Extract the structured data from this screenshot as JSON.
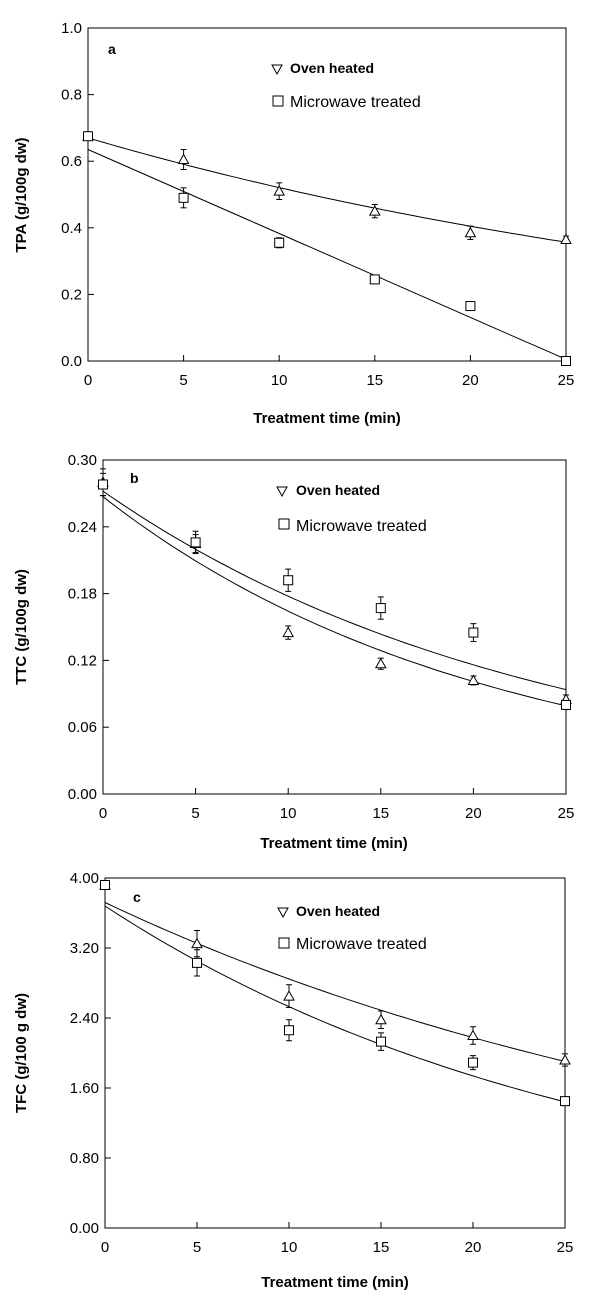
{
  "chart_data": [
    {
      "type": "scatter",
      "panel": "a",
      "xlabel": "Treatment time (min)",
      "ylabel": "TPA (g/100g dw)",
      "xlim": [
        0,
        25
      ],
      "ylim": [
        0,
        1.0
      ],
      "xticks": [
        "0",
        "5",
        "10",
        "15",
        "20",
        "25"
      ],
      "yticks": [
        "0.0",
        "0.2",
        "0.4",
        "0.6",
        "0.8",
        "1.0"
      ],
      "legend_position": "top-right",
      "series": [
        {
          "name": "Oven heated",
          "marker": "triangle",
          "x": [
            0,
            5,
            10,
            15,
            20,
            25
          ],
          "y": [
            0.675,
            0.605,
            0.51,
            0.45,
            0.385,
            0.365
          ],
          "yerr": [
            0.01,
            0.03,
            0.025,
            0.02,
            0.02,
            0.01
          ],
          "fit": {
            "kind": "exponential",
            "y0": 0.67,
            "k": 0.0252
          }
        },
        {
          "name": "Microwave treated",
          "marker": "square",
          "x": [
            0,
            5,
            10,
            15,
            20,
            25
          ],
          "y": [
            0.675,
            0.49,
            0.355,
            0.245,
            0.165,
            0.0
          ],
          "yerr": [
            0.01,
            0.03,
            0.015,
            0.01,
            0.01,
            0.0
          ],
          "fit": {
            "kind": "linear",
            "intercept": 0.635,
            "slope": -0.0252
          }
        }
      ]
    },
    {
      "type": "scatter",
      "panel": "b",
      "xlabel": "Treatment time (min)",
      "ylabel": "TTC (g/100g dw)",
      "xlim": [
        0,
        25
      ],
      "ylim": [
        0,
        0.3
      ],
      "xticks": [
        "0",
        "5",
        "10",
        "15",
        "20",
        "25"
      ],
      "yticks": [
        "0.00",
        "0.06",
        "0.12",
        "0.18",
        "0.24",
        "0.30"
      ],
      "legend_position": "top-right",
      "series": [
        {
          "name": "Oven heated",
          "marker": "triangle",
          "x": [
            0,
            5,
            10,
            15,
            20,
            25
          ],
          "y": [
            0.28,
            0.225,
            0.145,
            0.117,
            0.102,
            0.085
          ],
          "yerr": [
            0.012,
            0.008,
            0.006,
            0.005,
            0.004,
            0.004
          ],
          "fit": {
            "kind": "exponential",
            "y0": 0.267,
            "k": 0.0486
          }
        },
        {
          "name": "Microwave treated",
          "marker": "square",
          "x": [
            0,
            5,
            10,
            15,
            20,
            25
          ],
          "y": [
            0.278,
            0.226,
            0.192,
            0.167,
            0.145,
            0.08
          ],
          "yerr": [
            0.01,
            0.01,
            0.01,
            0.01,
            0.008,
            0.004
          ],
          "fit": {
            "kind": "exponential",
            "y0": 0.272,
            "k": 0.0426
          }
        }
      ]
    },
    {
      "type": "scatter",
      "panel": "c",
      "xlabel": "Treatment time (min)",
      "ylabel": "TFC  (g/100 g dw)",
      "xlim": [
        0,
        25
      ],
      "ylim": [
        0,
        4.0
      ],
      "xticks": [
        "0",
        "5",
        "10",
        "15",
        "20",
        "25"
      ],
      "yticks": [
        "0.00",
        "0.80",
        "1.60",
        "2.40",
        "3.20",
        "4.00"
      ],
      "legend_position": "top-right",
      "series": [
        {
          "name": "Oven heated",
          "marker": "triangle",
          "x": [
            0,
            5,
            10,
            15,
            20,
            25
          ],
          "y": [
            3.92,
            3.25,
            2.65,
            2.38,
            2.2,
            1.92
          ],
          "yerr": [
            0.05,
            0.15,
            0.13,
            0.1,
            0.1,
            0.07
          ],
          "fit": {
            "kind": "exponential",
            "y0": 3.72,
            "k": 0.0268
          }
        },
        {
          "name": "Microwave treated",
          "marker": "square",
          "x": [
            0,
            5,
            10,
            15,
            20,
            25
          ],
          "y": [
            3.92,
            3.03,
            2.26,
            2.13,
            1.89,
            1.45
          ],
          "yerr": [
            0.04,
            0.15,
            0.12,
            0.1,
            0.08,
            0.04
          ],
          "fit": {
            "kind": "exponential",
            "y0": 3.68,
            "k": 0.0375
          }
        }
      ]
    }
  ]
}
